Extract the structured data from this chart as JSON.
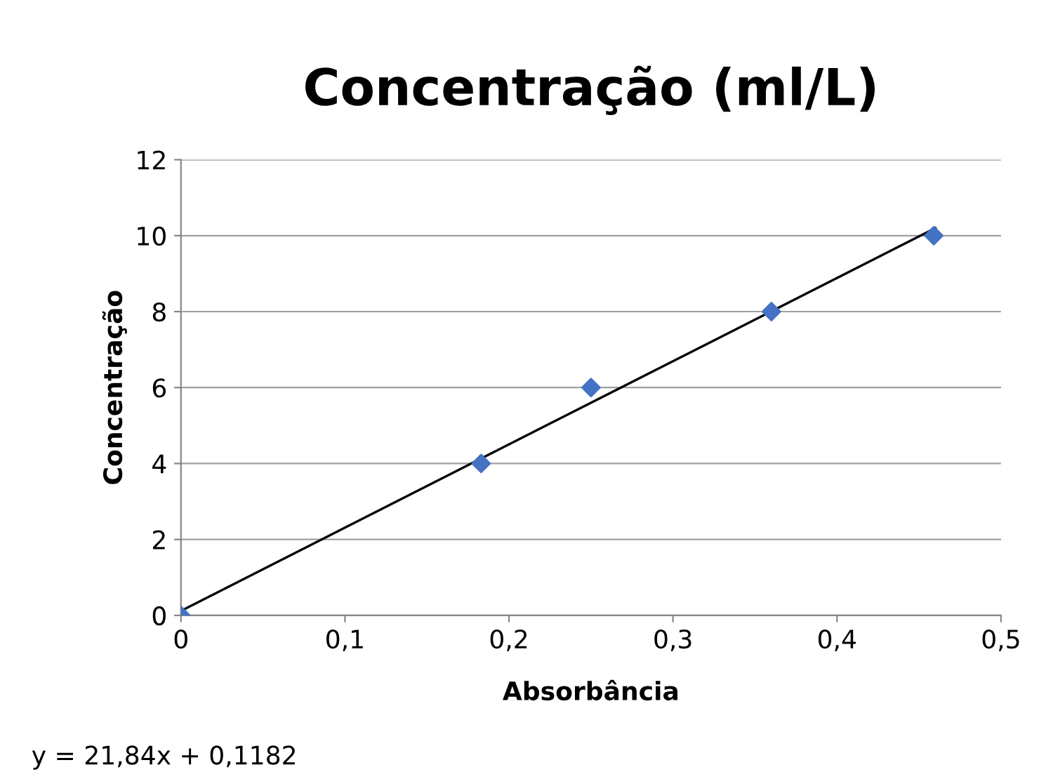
{
  "chart_data": {
    "type": "scatter",
    "title": "Concentração (ml/L)",
    "xlabel": "Absorbância",
    "ylabel": "Concentração",
    "x": [
      0,
      0.183,
      0.25,
      0.36,
      0.459
    ],
    "series": [
      {
        "color": "#4472c4",
        "marker": "diamond",
        "values": [
          0,
          4,
          6,
          8,
          10
        ]
      },
      {
        "type": "line",
        "color": "#000000",
        "marker": "none",
        "line_style": "solid",
        "x": [
          0,
          0.46
        ],
        "values": [
          0.12,
          10.2
        ]
      }
    ],
    "xlim": [
      0,
      0.5
    ],
    "ylim": [
      0,
      12
    ],
    "xticks": [
      0,
      {
        "value": 0.1,
        "label": "0,1"
      },
      {
        "value": 0.2,
        "label": "0,2"
      },
      {
        "value": 0.3,
        "label": "0,3"
      },
      {
        "value": 0.4,
        "label": "0,4"
      },
      {
        "value": 0.5,
        "label": "0,5"
      }
    ],
    "yticks": [
      0,
      2,
      4,
      6,
      8,
      10,
      12
    ],
    "grid": "y",
    "legend": false,
    "annotations": [
      "y = 21,84x + 0,1182"
    ]
  }
}
